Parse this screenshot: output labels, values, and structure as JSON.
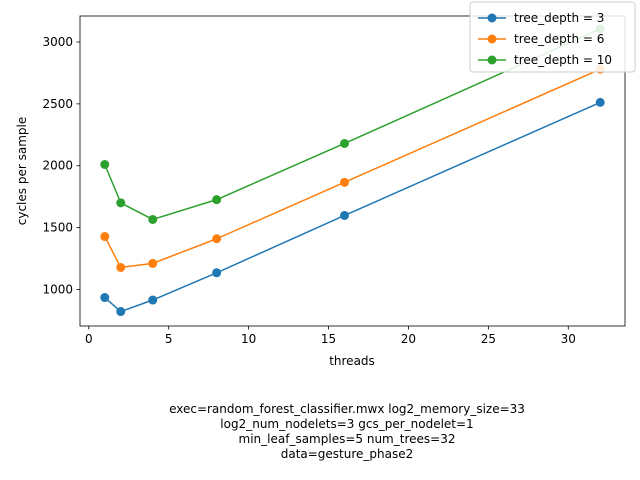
{
  "chart_data": {
    "type": "line",
    "xlabel": "threads",
    "ylabel": "cycles per sample",
    "xlim": [
      -0.55,
      33.55
    ],
    "ylim": [
      705,
      3210
    ],
    "xticks": [
      0,
      5,
      10,
      15,
      20,
      25,
      30
    ],
    "yticks": [
      1000,
      1500,
      2000,
      2500,
      3000
    ],
    "grid": false,
    "legend_position": "top-right",
    "series": [
      {
        "name": "tree_depth = 3",
        "color": "#1f77b4",
        "x": [
          1,
          2,
          4,
          8,
          16,
          32
        ],
        "y": [
          935,
          822,
          915,
          1135,
          1598,
          2512
        ]
      },
      {
        "name": "tree_depth = 6",
        "color": "#ff7f0e",
        "x": [
          1,
          2,
          4,
          8,
          16,
          32
        ],
        "y": [
          1428,
          1178,
          1211,
          1410,
          1866,
          2780
        ]
      },
      {
        "name": "tree_depth = 10",
        "color": "#2ca02c",
        "x": [
          1,
          2,
          4,
          8,
          16,
          32
        ],
        "y": [
          2010,
          1700,
          1566,
          1726,
          2180,
          3105
        ]
      }
    ],
    "caption": [
      "exec=random_forest_classifier.mwx   log2_memory_size=33",
      "log2_num_nodelets=3   gcs_per_nodelet=1",
      "min_leaf_samples=5   num_trees=32",
      "data=gesture_phase2"
    ]
  }
}
